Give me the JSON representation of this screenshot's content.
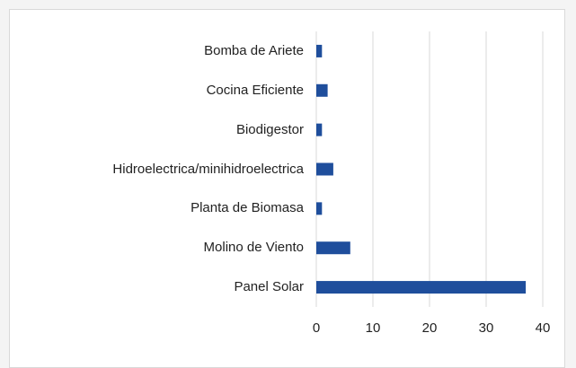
{
  "chart_data": {
    "type": "bar",
    "orientation": "horizontal",
    "categories": [
      "Bomba de Ariete",
      "Cocina Eficiente",
      "Biodigestor",
      "Hidroelectrica/minihidroelectrica",
      "Planta de Biomasa",
      "Molino de Viento",
      "Panel Solar"
    ],
    "values": [
      1,
      2,
      1,
      3,
      1,
      6,
      37
    ],
    "color": "#1f4e9c",
    "xlim": [
      0,
      40
    ],
    "xticks": [
      0,
      10,
      20,
      30,
      40
    ],
    "grid": true
  }
}
